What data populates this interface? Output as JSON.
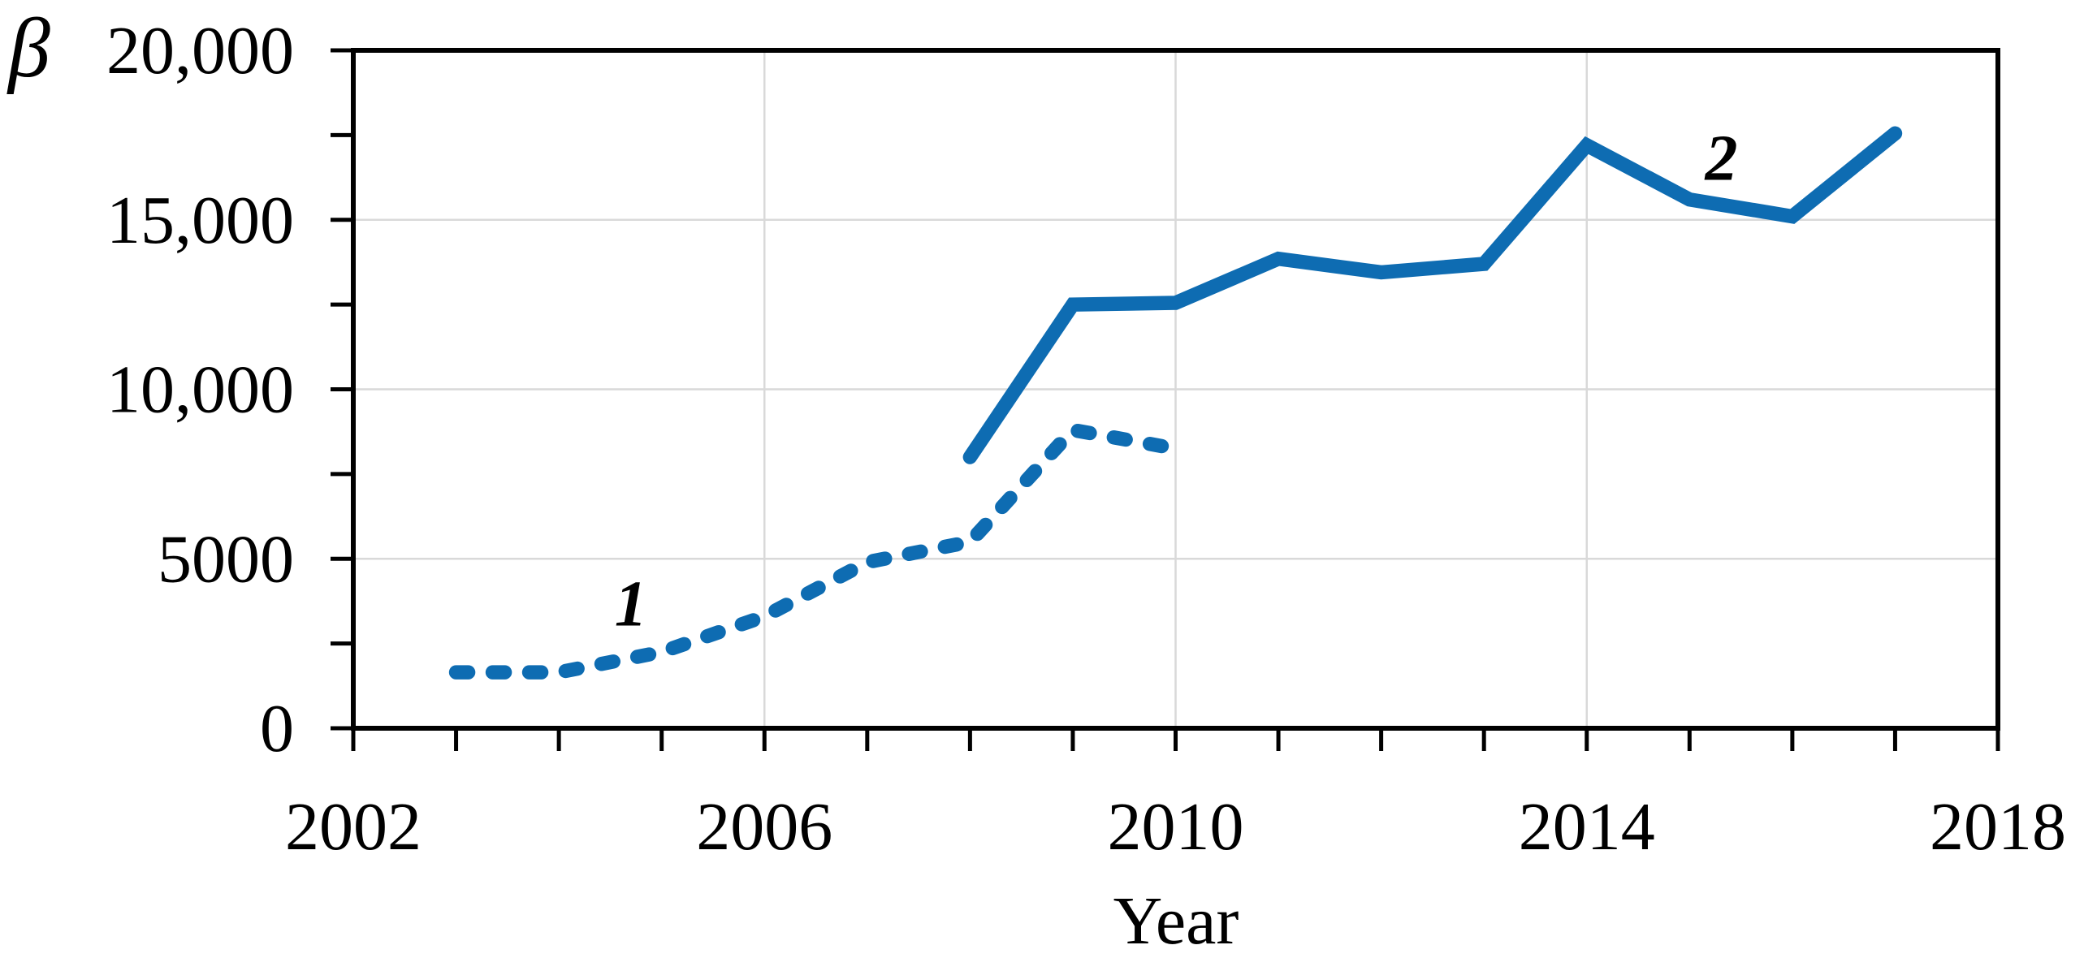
{
  "chart_data": {
    "type": "line",
    "title": "",
    "xlabel": "Year",
    "ylabel": "β",
    "grid": true,
    "legend": "none (series labeled inline with annotations 1 and 2)",
    "x_axis": {
      "min": 2002,
      "max": 2018,
      "tick_step": 1,
      "labeled_years": [
        2002,
        2006,
        2010,
        2014,
        2018
      ],
      "tick_labels": [
        "2002",
        "2006",
        "2010",
        "2014",
        "2018"
      ],
      "gridline_years": [
        2006,
        2010,
        2014
      ]
    },
    "y_axis": {
      "min": 0,
      "max": 20000,
      "tick_step": 2500,
      "labeled_values": [
        0,
        5000,
        10000,
        15000,
        20000
      ],
      "tick_labels": [
        "0",
        "5000",
        "10,000",
        "15,000",
        "20,000"
      ],
      "gridline_values": [
        5000,
        10000,
        15000
      ]
    },
    "series": [
      {
        "name": "1",
        "style": "dashed",
        "x": [
          2003,
          2004,
          2005,
          2006,
          2007,
          2008,
          2009,
          2010
        ],
        "values": [
          1650,
          1650,
          2250,
          3300,
          4900,
          5500,
          8800,
          8250
        ]
      },
      {
        "name": "2",
        "style": "solid",
        "x": [
          2008,
          2009,
          2010,
          2011,
          2012,
          2013,
          2014,
          2015,
          2016,
          2017
        ],
        "values": [
          8000,
          12500,
          12550,
          13850,
          13450,
          13700,
          17200,
          15600,
          15100,
          17550
        ]
      }
    ],
    "annotations": [
      {
        "text": "1",
        "year": 2004.7,
        "value": 3650
      },
      {
        "text": "2",
        "year": 2015.31,
        "value": 16800
      }
    ],
    "colors": {
      "line": "#0E6CB2",
      "gridline": "#D9D9D9",
      "axis": "#000000",
      "background": "#FFFFFF"
    }
  }
}
